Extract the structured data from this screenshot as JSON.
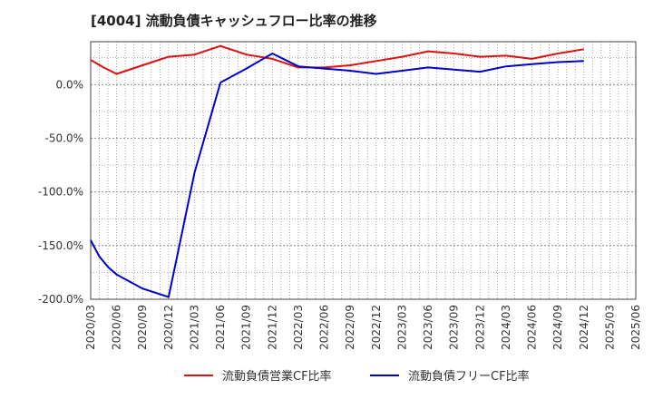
{
  "chart_data": {
    "type": "line",
    "title": "[4004]  流動負債キャッシュフロー比率の推移",
    "xlabel": "",
    "ylabel": "",
    "ylim": [
      -200,
      40
    ],
    "y_ticks": [
      0,
      -50,
      -100,
      -150,
      -200
    ],
    "y_tick_labels": [
      "0.0%",
      "-50.0%",
      "-100.0%",
      "-150.0%",
      "-200.0%"
    ],
    "x_tick_labels": [
      "2020/03",
      "2020/06",
      "2020/09",
      "2020/12",
      "2021/03",
      "2021/06",
      "2021/09",
      "2021/12",
      "2022/03",
      "2022/06",
      "2022/09",
      "2022/12",
      "2023/03",
      "2023/06",
      "2023/09",
      "2023/12",
      "2024/03",
      "2024/06",
      "2024/09",
      "2024/12",
      "2025/03",
      "2025/06"
    ],
    "grid": true,
    "legend_position": "bottom",
    "series": [
      {
        "name": "流動負債営業CF比率",
        "color": "#dd1111",
        "x": [
          0,
          0.5,
          1,
          2,
          3,
          4,
          5,
          6,
          7,
          8,
          9,
          10,
          11,
          12,
          13,
          14,
          15,
          16,
          17,
          18,
          19
        ],
        "values": [
          23,
          16,
          10,
          18,
          26,
          28,
          36,
          28,
          24,
          16,
          16,
          18,
          22,
          26,
          31,
          29,
          26,
          27,
          24,
          29,
          33
        ]
      },
      {
        "name": "流動負債フリーCF比率",
        "color": "#0000cc",
        "x": [
          0,
          0.33,
          0.67,
          1,
          2,
          3,
          3.33,
          4,
          5,
          6,
          7,
          8,
          9,
          10,
          11,
          12,
          13,
          14,
          15,
          16,
          17,
          18,
          19
        ],
        "values": [
          -145,
          -160,
          -170,
          -177,
          -190,
          -198,
          -160,
          -82,
          2,
          15,
          29,
          17,
          15,
          13,
          10,
          13,
          16,
          14,
          12,
          17,
          19,
          21,
          22
        ]
      }
    ]
  }
}
